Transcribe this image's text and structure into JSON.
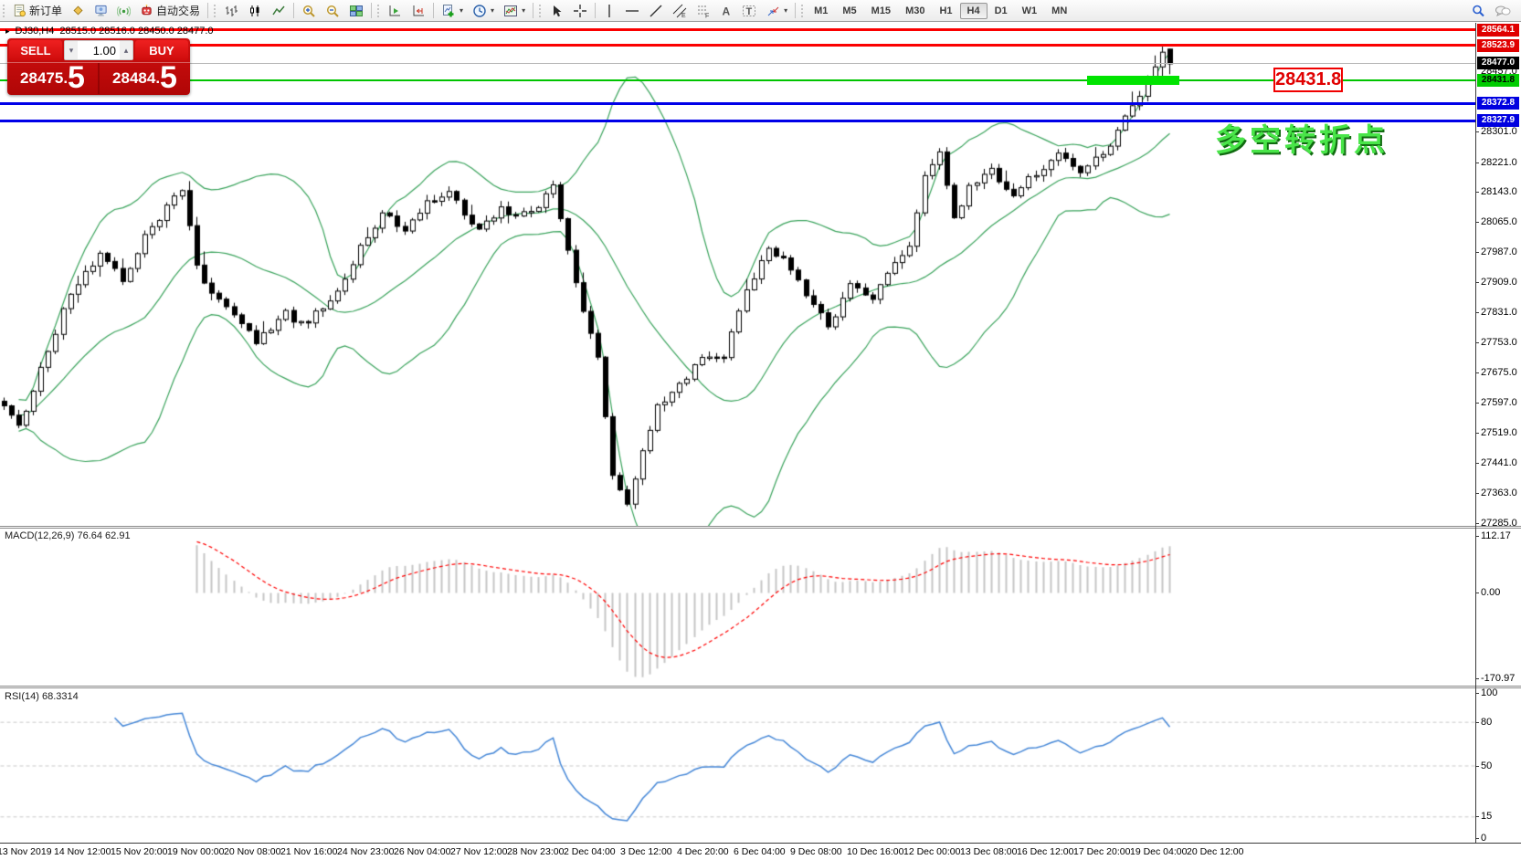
{
  "toolbar": {
    "new_order": "新订单",
    "autotrading": "自动交易",
    "timeframes": [
      "M1",
      "M5",
      "M15",
      "M30",
      "H1",
      "H4",
      "D1",
      "W1",
      "MN"
    ],
    "active_timeframe": "H4",
    "caret_glyph": "▾"
  },
  "trade_panel": {
    "sell_label": "SELL",
    "buy_label": "BUY",
    "volume": "1.00",
    "volume_down_glyph": "▾",
    "volume_up_glyph": "▴",
    "sell_price": "28475",
    "sell_big": "5",
    "buy_price": "28484",
    "buy_big": "5",
    "decimal_glyph": "."
  },
  "chart_header": {
    "marker_glyph": "▸",
    "symbol_period": "DJ30,H4",
    "ohlc": "28515.0 28516.0 28450.0 28477.0"
  },
  "annotation": {
    "text": "多空转折点",
    "price_box": "28431.8"
  },
  "levels": [
    {
      "label": "28564.1",
      "value": 28564.1,
      "style": "red"
    },
    {
      "label": "28523.9",
      "value": 28523.9,
      "style": "red"
    },
    {
      "label": "28477.0",
      "value": 28477.0,
      "style": "current"
    },
    {
      "label": "28457.0",
      "value": 28457.0,
      "style": "plain"
    },
    {
      "label": "28431.8",
      "value": 28431.8,
      "style": "green"
    },
    {
      "label": "28372.8",
      "value": 28372.8,
      "style": "blue"
    },
    {
      "label": "28327.9",
      "value": 28327.9,
      "style": "blue"
    }
  ],
  "macd_label": "MACD(12,26,9) 76.64 62.91",
  "rsi_label": "RSI(14) 68.3314",
  "chart_data": {
    "type": "candlestick",
    "symbol": "DJ30",
    "period": "H4",
    "last_ohlc": {
      "open": 28515.0,
      "high": 28516.0,
      "low": 28450.0,
      "close": 28477.0
    },
    "candle_count": 158,
    "x0": 3.5,
    "x_step": 8.13,
    "ylim": [
      27278,
      28582
    ],
    "price_waypoints": [
      [
        0,
        27590
      ],
      [
        2,
        27540
      ],
      [
        4,
        27630
      ],
      [
        9,
        27890
      ],
      [
        13,
        27990
      ],
      [
        16,
        27910
      ],
      [
        20,
        28060
      ],
      [
        24,
        28150
      ],
      [
        26,
        27950
      ],
      [
        28,
        27880
      ],
      [
        31,
        27830
      ],
      [
        34,
        27760
      ],
      [
        38,
        27830
      ],
      [
        41,
        27790
      ],
      [
        44,
        27870
      ],
      [
        48,
        28000
      ],
      [
        51,
        28090
      ],
      [
        54,
        28050
      ],
      [
        57,
        28130
      ],
      [
        60,
        28150
      ],
      [
        62,
        28080
      ],
      [
        64,
        28060
      ],
      [
        67,
        28110
      ],
      [
        69,
        28080
      ],
      [
        72,
        28120
      ],
      [
        74,
        28160
      ],
      [
        76,
        27990
      ],
      [
        78,
        27840
      ],
      [
        80,
        27720
      ],
      [
        82,
        27420
      ],
      [
        84,
        27350
      ],
      [
        86,
        27480
      ],
      [
        88,
        27590
      ],
      [
        91,
        27650
      ],
      [
        94,
        27710
      ],
      [
        97,
        27730
      ],
      [
        100,
        27910
      ],
      [
        103,
        27990
      ],
      [
        106,
        27950
      ],
      [
        109,
        27850
      ],
      [
        111,
        27800
      ],
      [
        114,
        27900
      ],
      [
        117,
        27860
      ],
      [
        120,
        27960
      ],
      [
        122,
        27990
      ],
      [
        124,
        28200
      ],
      [
        126,
        28260
      ],
      [
        128,
        28070
      ],
      [
        130,
        28160
      ],
      [
        133,
        28190
      ],
      [
        136,
        28130
      ],
      [
        139,
        28190
      ],
      [
        142,
        28260
      ],
      [
        145,
        28210
      ],
      [
        148,
        28250
      ],
      [
        150,
        28310
      ],
      [
        152,
        28380
      ],
      [
        154,
        28430
      ],
      [
        156,
        28515
      ],
      [
        157,
        28477
      ]
    ],
    "y_ticks": [
      "28301.0",
      "28221.0",
      "28143.0",
      "28065.0",
      "27987.0",
      "27909.0",
      "27831.0",
      "27753.0",
      "27675.0",
      "27597.0",
      "27519.0",
      "27441.0",
      "27363.0",
      "27285.0"
    ],
    "x_ticks": [
      "13 Nov 2019",
      "14 Nov 12:00",
      "15 Nov 20:00",
      "19 Nov 00:00",
      "20 Nov 08:00",
      "21 Nov 16:00",
      "24 Nov 23:00",
      "26 Nov 04:00",
      "27 Nov 12:00",
      "28 Nov 23:00",
      "2 Dec 04:00",
      "3 Dec 12:00",
      "4 Dec 20:00",
      "6 Dec 04:00",
      "9 Dec 08:00",
      "10 Dec 16:00",
      "12 Dec 00:00",
      "13 Dec 08:00",
      "16 Dec 12:00",
      "17 Dec 20:00",
      "19 Dec 04:00",
      "20 Dec 12:00"
    ],
    "x_tick_start": -3,
    "x_tick_step": 62,
    "bollinger": {
      "period": 20,
      "deviation": 2,
      "color": "#3aa35c"
    },
    "macd": {
      "fast": 12,
      "slow": 26,
      "signal": 9,
      "current_main": 76.64,
      "current_signal": 62.91,
      "scale_labels": [
        "112.17",
        "0.00",
        "-170.97"
      ],
      "ylim": [
        -185,
        127
      ],
      "hist_color": "#c6c6c6",
      "signal_color": "#ff0000"
    },
    "rsi": {
      "period": 14,
      "current": 68.3314,
      "levels": [
        80,
        50,
        15
      ],
      "scale_labels": [
        "100",
        "80",
        "50",
        "15",
        "0"
      ],
      "ylim": [
        -3,
        103
      ],
      "color": "#4587d7",
      "level_color": "#c9c9c9"
    },
    "colors": {
      "bull": "#ffffff",
      "bear": "#000000",
      "outline": "#000000",
      "level_red": "#fb0000",
      "level_blue": "#0000e8",
      "level_green": "#00c400",
      "highlight_green": "#00e400",
      "current_gray": "#b6b6b6",
      "badge_red": "#e00000",
      "badge_blue": "#0000e0",
      "badge_green": "#00cc00",
      "badge_black": "#000000"
    }
  }
}
